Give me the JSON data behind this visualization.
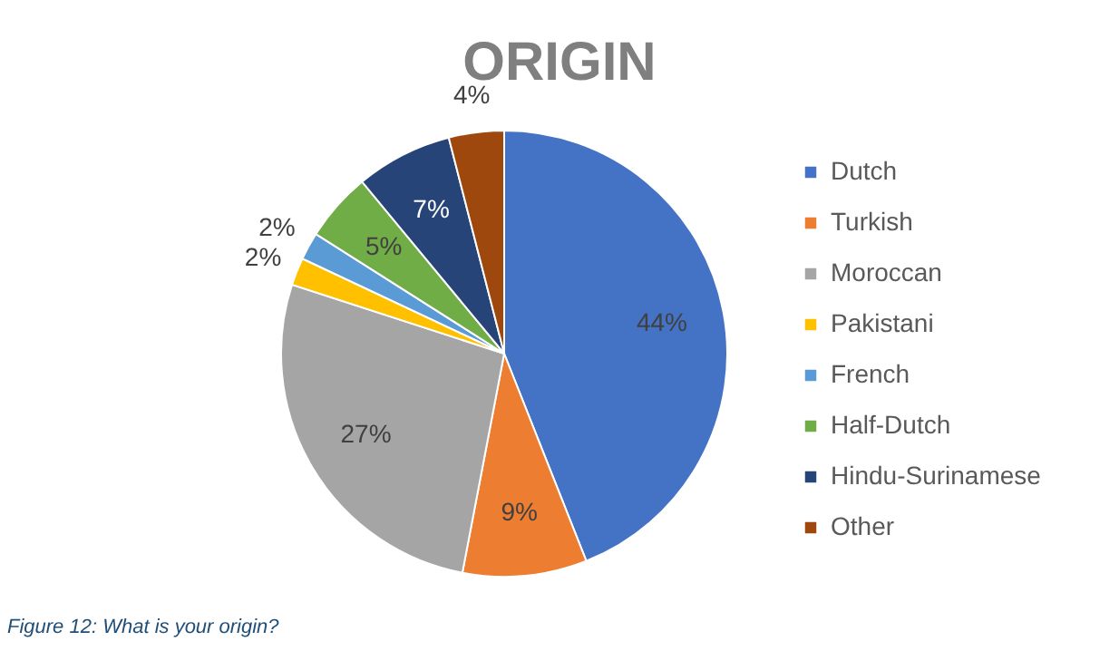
{
  "chart_data": {
    "type": "pie",
    "title": "ORIGIN",
    "categories": [
      "Dutch",
      "Turkish",
      "Moroccan",
      "Pakistani",
      "French",
      "Half-Dutch",
      "Hindu-Surinamese",
      "Other"
    ],
    "values": [
      44,
      9,
      27,
      2,
      2,
      5,
      7,
      4
    ],
    "colors": [
      "#4472c4",
      "#ed7d31",
      "#a5a5a5",
      "#ffc000",
      "#5b9bd5",
      "#70ad47",
      "#264478",
      "#9e480e"
    ],
    "value_labels": [
      "44%",
      "9%",
      "27%",
      "2%",
      "2%",
      "5%",
      "7%",
      "4%"
    ],
    "legend": "right",
    "annotations": [
      "Figure 12: What is your origin?"
    ]
  }
}
